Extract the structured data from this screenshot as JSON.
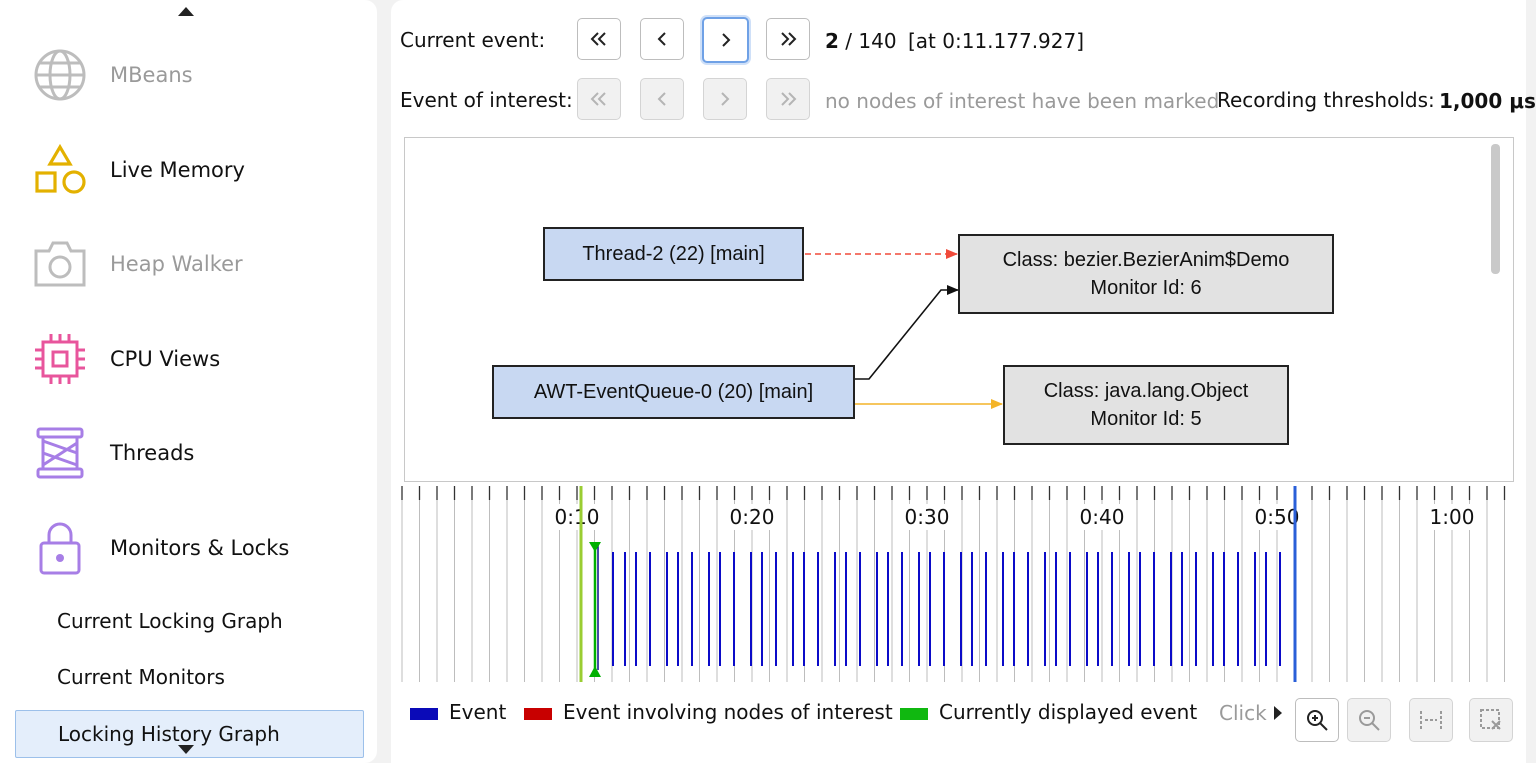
{
  "sidebar": {
    "items": [
      {
        "label": "MBeans",
        "icon": "globe-icon",
        "enabled": false
      },
      {
        "label": "Live Memory",
        "icon": "shapes-icon",
        "enabled": true,
        "color": "#e3b100"
      },
      {
        "label": "Heap Walker",
        "icon": "camera-icon",
        "enabled": false
      },
      {
        "label": "CPU Views",
        "icon": "chip-icon",
        "enabled": true,
        "color": "#e8559c"
      },
      {
        "label": "Threads",
        "icon": "spool-icon",
        "enabled": true,
        "color": "#a77ee6"
      },
      {
        "label": "Monitors & Locks",
        "icon": "lock-icon",
        "enabled": true,
        "color": "#a77ee6"
      }
    ],
    "subitems": [
      {
        "label": "Current Locking Graph",
        "selected": false
      },
      {
        "label": "Current Monitors",
        "selected": false
      },
      {
        "label": "Locking History Graph",
        "selected": true
      }
    ]
  },
  "toolbar": {
    "current_event_label": "Current event:",
    "current_index": "2",
    "total_sep": " / 140",
    "timestamp": "[at 0:11.177.927]",
    "event_of_interest_label": "Event of interest:",
    "no_interest_text": "no nodes of interest have been marked",
    "thresholds_label": "Recording thresholds:",
    "thresholds_value": "1,000 μs"
  },
  "graph": {
    "nodes": [
      {
        "id": "t2",
        "kind": "thread",
        "lines": [
          "Thread-2 (22) [main]"
        ]
      },
      {
        "id": "awt",
        "kind": "thread",
        "lines": [
          "AWT-EventQueue-0 (20) [main]"
        ]
      },
      {
        "id": "m6",
        "kind": "monitor",
        "lines": [
          "Class: bezier.BezierAnim$Demo",
          "Monitor Id: 6"
        ]
      },
      {
        "id": "m5",
        "kind": "monitor",
        "lines": [
          "Class: java.lang.Object",
          "Monitor Id: 5"
        ]
      }
    ],
    "edges": [
      {
        "from": "t2",
        "to": "m6",
        "style": "dashed",
        "color": "#f04a3a"
      },
      {
        "from": "awt",
        "to": "m6",
        "style": "solid",
        "color": "#111111"
      },
      {
        "from": "awt",
        "to": "m5",
        "style": "solid",
        "color": "#f4b428"
      }
    ]
  },
  "timeline": {
    "tick_labels": [
      "0:10",
      "0:20",
      "0:30",
      "0:40",
      "0:50",
      "1:00"
    ],
    "event_color": "#0b0bc8",
    "current_color": "#00b000",
    "range_start_color": "#9acd32",
    "range_end_color": "#2a5fd8"
  },
  "legend": [
    {
      "label": "Event",
      "color": "#0a0ab8"
    },
    {
      "label": "Event involving nodes of interest",
      "color": "#c80000"
    },
    {
      "label": "Currently displayed event",
      "color": "#10b810"
    }
  ],
  "click_hint": "Click",
  "tools": [
    "zoom-in-icon",
    "zoom-out-icon",
    "fit-width-icon",
    "reset-selection-icon"
  ]
}
